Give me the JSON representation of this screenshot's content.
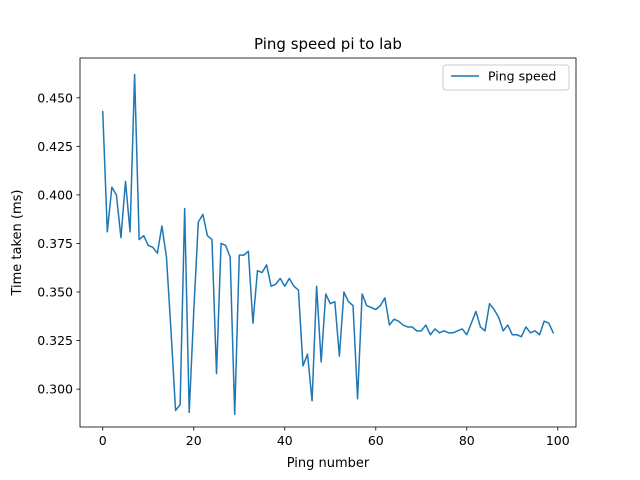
{
  "chart_data": {
    "type": "line",
    "title": "Ping speed pi to lab",
    "xlabel": "Ping number",
    "ylabel": "Time taken (ms)",
    "xlim": [
      -5,
      104
    ],
    "ylim": [
      0.2805,
      0.4705
    ],
    "xticks": [
      0,
      20,
      40,
      60,
      80,
      100
    ],
    "yticks": [
      0.3,
      0.325,
      0.35,
      0.375,
      0.4,
      0.425,
      0.45
    ],
    "ytick_labels": [
      "0.300",
      "0.325",
      "0.350",
      "0.375",
      "0.400",
      "0.425",
      "0.450"
    ],
    "grid": false,
    "legend_position": "top-right",
    "series": [
      {
        "name": "Ping speed",
        "color": "#1f77b4",
        "x": [
          0,
          1,
          2,
          3,
          4,
          5,
          6,
          7,
          8,
          9,
          10,
          11,
          12,
          13,
          14,
          15,
          16,
          17,
          18,
          19,
          20,
          21,
          22,
          23,
          24,
          25,
          26,
          27,
          28,
          29,
          30,
          31,
          32,
          33,
          34,
          35,
          36,
          37,
          38,
          39,
          40,
          41,
          42,
          43,
          44,
          45,
          46,
          47,
          48,
          49,
          50,
          51,
          52,
          53,
          54,
          55,
          56,
          57,
          58,
          59,
          60,
          61,
          62,
          63,
          64,
          65,
          66,
          67,
          68,
          69,
          70,
          71,
          72,
          73,
          74,
          75,
          76,
          77,
          78,
          79,
          80,
          81,
          82,
          83,
          84,
          85,
          86,
          87,
          88,
          89,
          90,
          91,
          92,
          93,
          94,
          95,
          96,
          97,
          98,
          99
        ],
        "values": [
          0.443,
          0.381,
          0.404,
          0.4,
          0.378,
          0.407,
          0.381,
          0.462,
          0.377,
          0.379,
          0.374,
          0.373,
          0.37,
          0.384,
          0.368,
          0.33,
          0.289,
          0.292,
          0.393,
          0.288,
          0.34,
          0.386,
          0.39,
          0.379,
          0.377,
          0.308,
          0.375,
          0.374,
          0.368,
          0.287,
          0.369,
          0.369,
          0.371,
          0.334,
          0.361,
          0.36,
          0.364,
          0.353,
          0.354,
          0.357,
          0.353,
          0.357,
          0.353,
          0.351,
          0.312,
          0.318,
          0.294,
          0.353,
          0.314,
          0.349,
          0.344,
          0.345,
          0.317,
          0.35,
          0.345,
          0.343,
          0.295,
          0.349,
          0.343,
          0.342,
          0.341,
          0.343,
          0.347,
          0.333,
          0.336,
          0.335,
          0.333,
          0.332,
          0.332,
          0.33,
          0.33,
          0.333,
          0.328,
          0.331,
          0.329,
          0.33,
          0.329,
          0.329,
          0.33,
          0.331,
          0.328,
          0.334,
          0.34,
          0.332,
          0.33,
          0.344,
          0.341,
          0.337,
          0.33,
          0.333,
          0.328,
          0.328,
          0.327,
          0.332,
          0.329,
          0.33,
          0.328,
          0.335,
          0.334,
          0.329
        ]
      }
    ]
  }
}
